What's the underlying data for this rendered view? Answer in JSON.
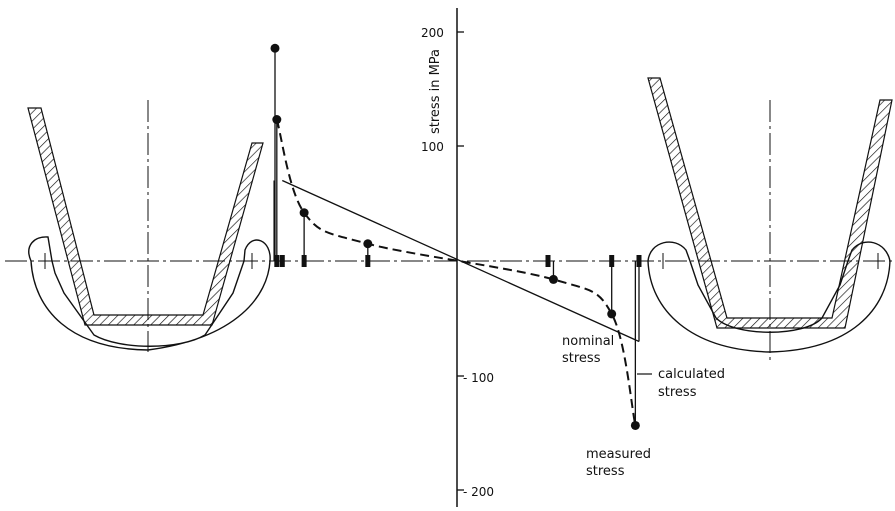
{
  "chart_data": {
    "type": "line",
    "ylabel": "stress in MPa",
    "y_ticks": [
      "200",
      "100",
      "- 100",
      "- 200"
    ],
    "ylim": [
      -230,
      210
    ],
    "annotations": {
      "nominal_stress": [
        "nominal",
        "stress"
      ],
      "calculated_stress": [
        "calculated",
        "stress"
      ],
      "measured_stress": [
        "measured",
        "stress"
      ]
    },
    "series": [
      {
        "key": "measured",
        "style": "dashed",
        "points": [
          {
            "x": -1.0,
            "y": 185
          },
          {
            "x": -0.99,
            "y": 123
          },
          {
            "x": -0.84,
            "y": 42
          },
          {
            "x": -0.49,
            "y": 15
          },
          {
            "x": 0.53,
            "y": -16
          },
          {
            "x": 0.85,
            "y": -46
          },
          {
            "x": 0.98,
            "y": -143
          }
        ]
      },
      {
        "key": "nominal",
        "style": "solid",
        "points": [
          {
            "x": -0.96,
            "y": 70
          },
          {
            "x": 1.0,
            "y": -70
          }
        ]
      }
    ],
    "gauge_positions": [
      -0.99,
      -0.96,
      -0.84,
      -0.49,
      0.5,
      0.85,
      1.0
    ]
  }
}
